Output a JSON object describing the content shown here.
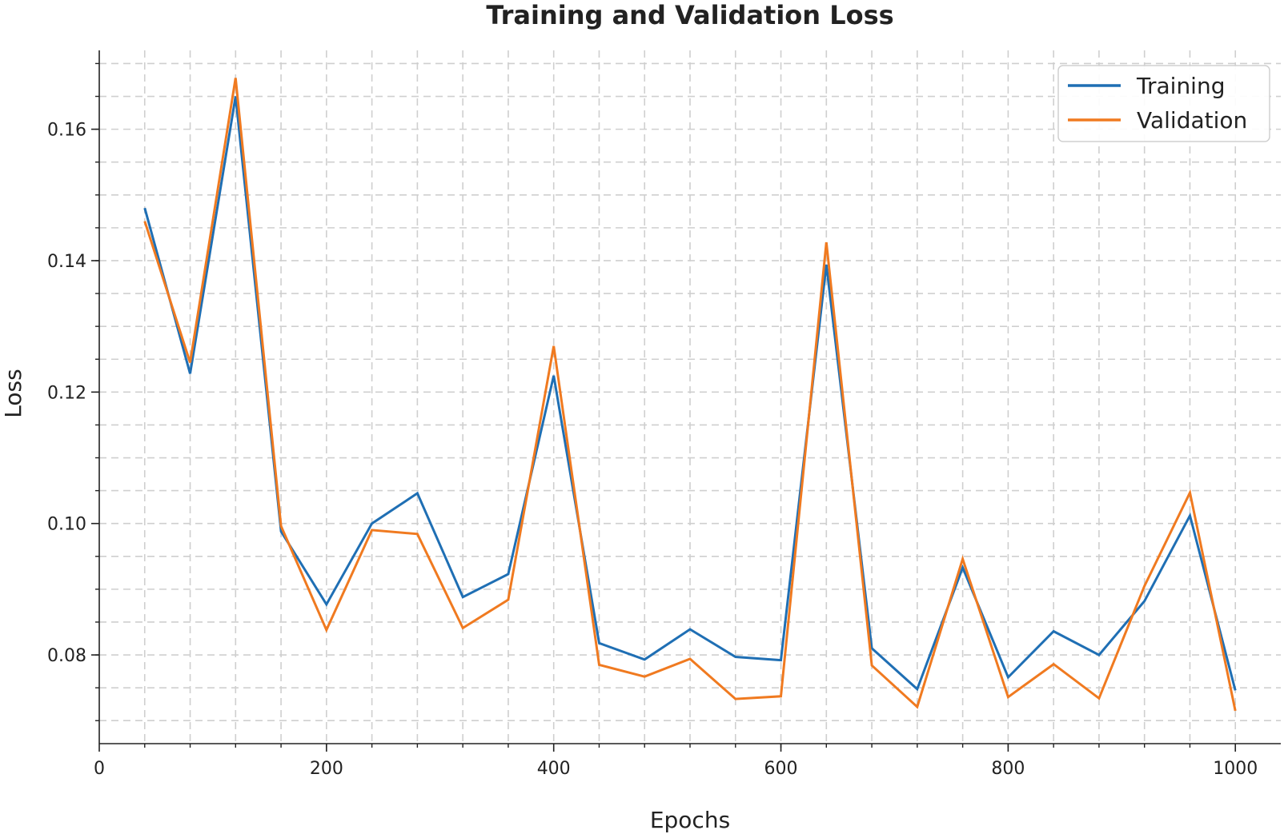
{
  "chart_data": {
    "type": "line",
    "title": "Training and Validation Loss",
    "xlabel": "Epochs",
    "ylabel": "Loss",
    "xlim": [
      0,
      1040
    ],
    "ylim": [
      0.0665,
      0.172
    ],
    "xticks": [
      0,
      200,
      400,
      600,
      800,
      1000
    ],
    "xtick_labels": [
      "0",
      "200",
      "400",
      "600",
      "800",
      "1000"
    ],
    "xminor_step": 40,
    "yticks": [
      0.08,
      0.1,
      0.12,
      0.14,
      0.16
    ],
    "ytick_labels": [
      "0.08",
      "0.10",
      "0.12",
      "0.14",
      "0.16"
    ],
    "yminor_step": 0.005,
    "grid": true,
    "legend_position": "top-right",
    "x": [
      40,
      80,
      120,
      160,
      200,
      240,
      280,
      320,
      360,
      400,
      440,
      480,
      520,
      560,
      600,
      640,
      680,
      720,
      760,
      800,
      840,
      880,
      920,
      960,
      1000
    ],
    "series": [
      {
        "name": "Training",
        "color": "#1f6fb4",
        "values": [
          0.148,
          0.1228,
          0.165,
          0.0988,
          0.0877,
          0.1,
          0.1046,
          0.0888,
          0.0923,
          0.1225,
          0.0818,
          0.0793,
          0.0839,
          0.0797,
          0.0792,
          0.1394,
          0.081,
          0.0748,
          0.0933,
          0.0766,
          0.0836,
          0.08,
          0.0882,
          0.1012,
          0.0746
        ]
      },
      {
        "name": "Validation",
        "color": "#f07a20",
        "values": [
          0.146,
          0.1245,
          0.1678,
          0.0996,
          0.0838,
          0.099,
          0.0984,
          0.0841,
          0.0884,
          0.127,
          0.0785,
          0.0767,
          0.0794,
          0.0733,
          0.0737,
          0.1428,
          0.0784,
          0.0721,
          0.0946,
          0.0736,
          0.0786,
          0.0734,
          0.0905,
          0.1047,
          0.0715
        ]
      }
    ]
  }
}
